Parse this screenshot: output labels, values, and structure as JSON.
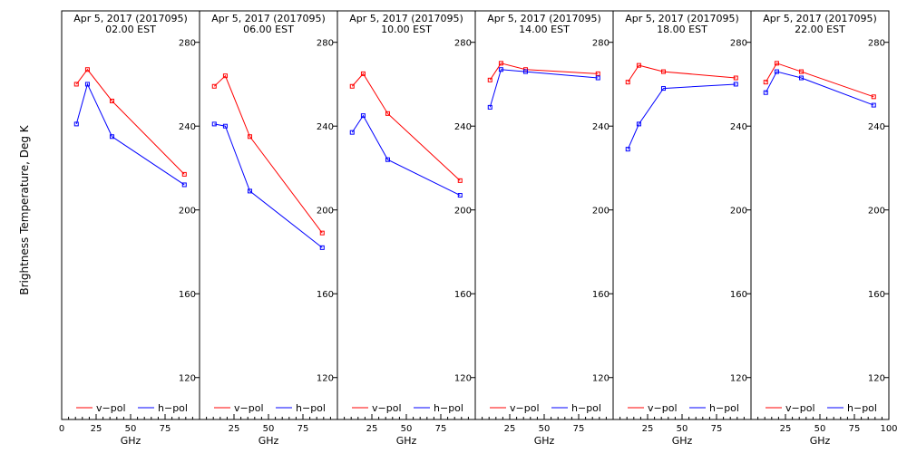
{
  "chart_data": {
    "type": "line",
    "ylabel": "Brightness Temperature, Deg K",
    "xlabel": "GHz",
    "xlim": [
      0,
      100
    ],
    "ylim": [
      100,
      295
    ],
    "yticks": [
      120,
      160,
      200,
      240,
      280
    ],
    "xticks": [
      0,
      25,
      50,
      75,
      100
    ],
    "colors": {
      "v": "#ff0000",
      "h": "#0000ff"
    },
    "legend": {
      "v_label": "v−pol",
      "h_label": "h−pol"
    },
    "x": [
      10.7,
      18.7,
      36.5,
      89.0
    ],
    "panels": [
      {
        "date": "Apr  5, 2017 (2017095)",
        "time": "02.00 EST",
        "v": [
          260,
          267,
          252,
          217
        ],
        "h": [
          241,
          260,
          235,
          212
        ]
      },
      {
        "date": "Apr  5, 2017 (2017095)",
        "time": "06.00 EST",
        "v": [
          259,
          264,
          235,
          189
        ],
        "h": [
          241,
          240,
          209,
          182
        ]
      },
      {
        "date": "Apr  5, 2017 (2017095)",
        "time": "10.00 EST",
        "v": [
          259,
          265,
          246,
          214
        ],
        "h": [
          237,
          245,
          224,
          207
        ]
      },
      {
        "date": "Apr  5, 2017 (2017095)",
        "time": "14.00 EST",
        "v": [
          262,
          270,
          267,
          265
        ],
        "h": [
          249,
          267,
          266,
          263
        ]
      },
      {
        "date": "Apr  5, 2017 (2017095)",
        "time": "18.00 EST",
        "v": [
          261,
          269,
          266,
          263
        ],
        "h": [
          229,
          241,
          258,
          260
        ]
      },
      {
        "date": "Apr  5, 2017 (2017095)",
        "time": "22.00 EST",
        "v": [
          261,
          270,
          266,
          254
        ],
        "h": [
          256,
          266,
          263,
          250
        ]
      }
    ]
  }
}
